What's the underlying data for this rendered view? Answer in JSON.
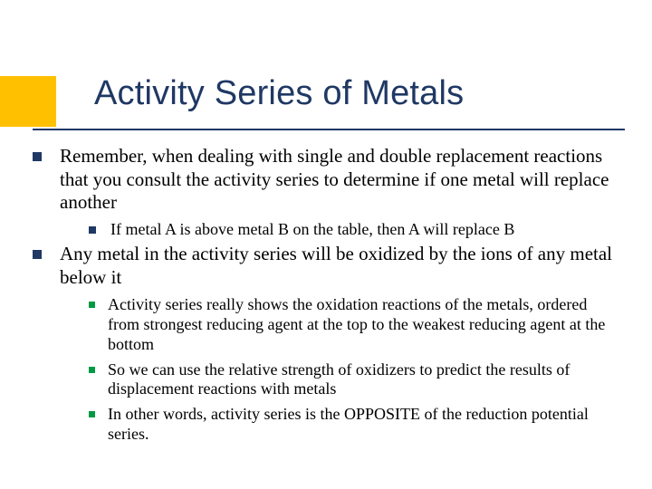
{
  "colors": {
    "accent_block": "#ffc000",
    "title_text": "#1f3864",
    "rule": "#1f3864",
    "bullet_lvl1": "#1f3864",
    "bullet_lvl2": "#1f3864",
    "bullet_lvl3": "#009a44",
    "background": "#ffffff",
    "body_text": "#000000"
  },
  "typography": {
    "title_font": "Arial",
    "title_size_pt": 38,
    "body_font": "Times New Roman",
    "lvl1_size_pt": 21,
    "lvl2_size_pt": 18,
    "lvl3_size_pt": 18
  },
  "title": "Activity Series of Metals",
  "bullets": [
    {
      "text": "Remember, when dealing with single and double replacement reactions that you consult the activity series to determine if one metal will replace another",
      "children": [
        {
          "text": "If metal A is above metal B on the table, then A will replace B"
        }
      ]
    },
    {
      "text": "Any metal in the activity series will be oxidized by the ions of any metal below it",
      "children": [
        {
          "text": "Activity series really shows the oxidation reactions of the metals, ordered from strongest reducing agent at the top to the weakest reducing agent at the bottom"
        },
        {
          "text": "So we can use the relative strength of oxidizers to predict the results of displacement reactions with metals"
        },
        {
          "text": "In other words, activity series is the OPPOSITE of the reduction potential series."
        }
      ]
    }
  ]
}
